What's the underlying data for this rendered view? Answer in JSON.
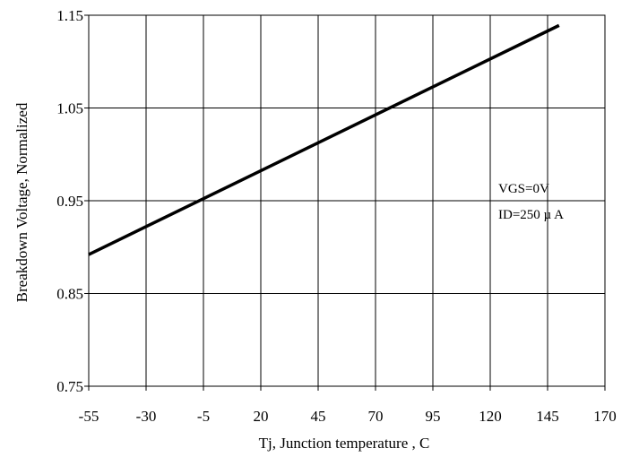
{
  "chart_data": {
    "type": "line",
    "title": "",
    "xlabel": "Tj, Junction temperature , C",
    "ylabel": "Breakdown Voltage, Normalized",
    "xlim": [
      -55,
      170
    ],
    "ylim": [
      0.75,
      1.15
    ],
    "x_ticks": [
      "-55",
      "-30",
      "-5",
      "20",
      "45",
      "70",
      "95",
      "120",
      "145",
      "170"
    ],
    "y_ticks": [
      "0.75",
      "0.85",
      "0.95",
      "1.05",
      "1.15"
    ],
    "grid": true,
    "series": [
      {
        "x": [
          -55,
          150
        ],
        "y": [
          0.892,
          1.139
        ]
      }
    ],
    "annotations": [
      "VGS=0V",
      "ID=250 µ A"
    ]
  }
}
